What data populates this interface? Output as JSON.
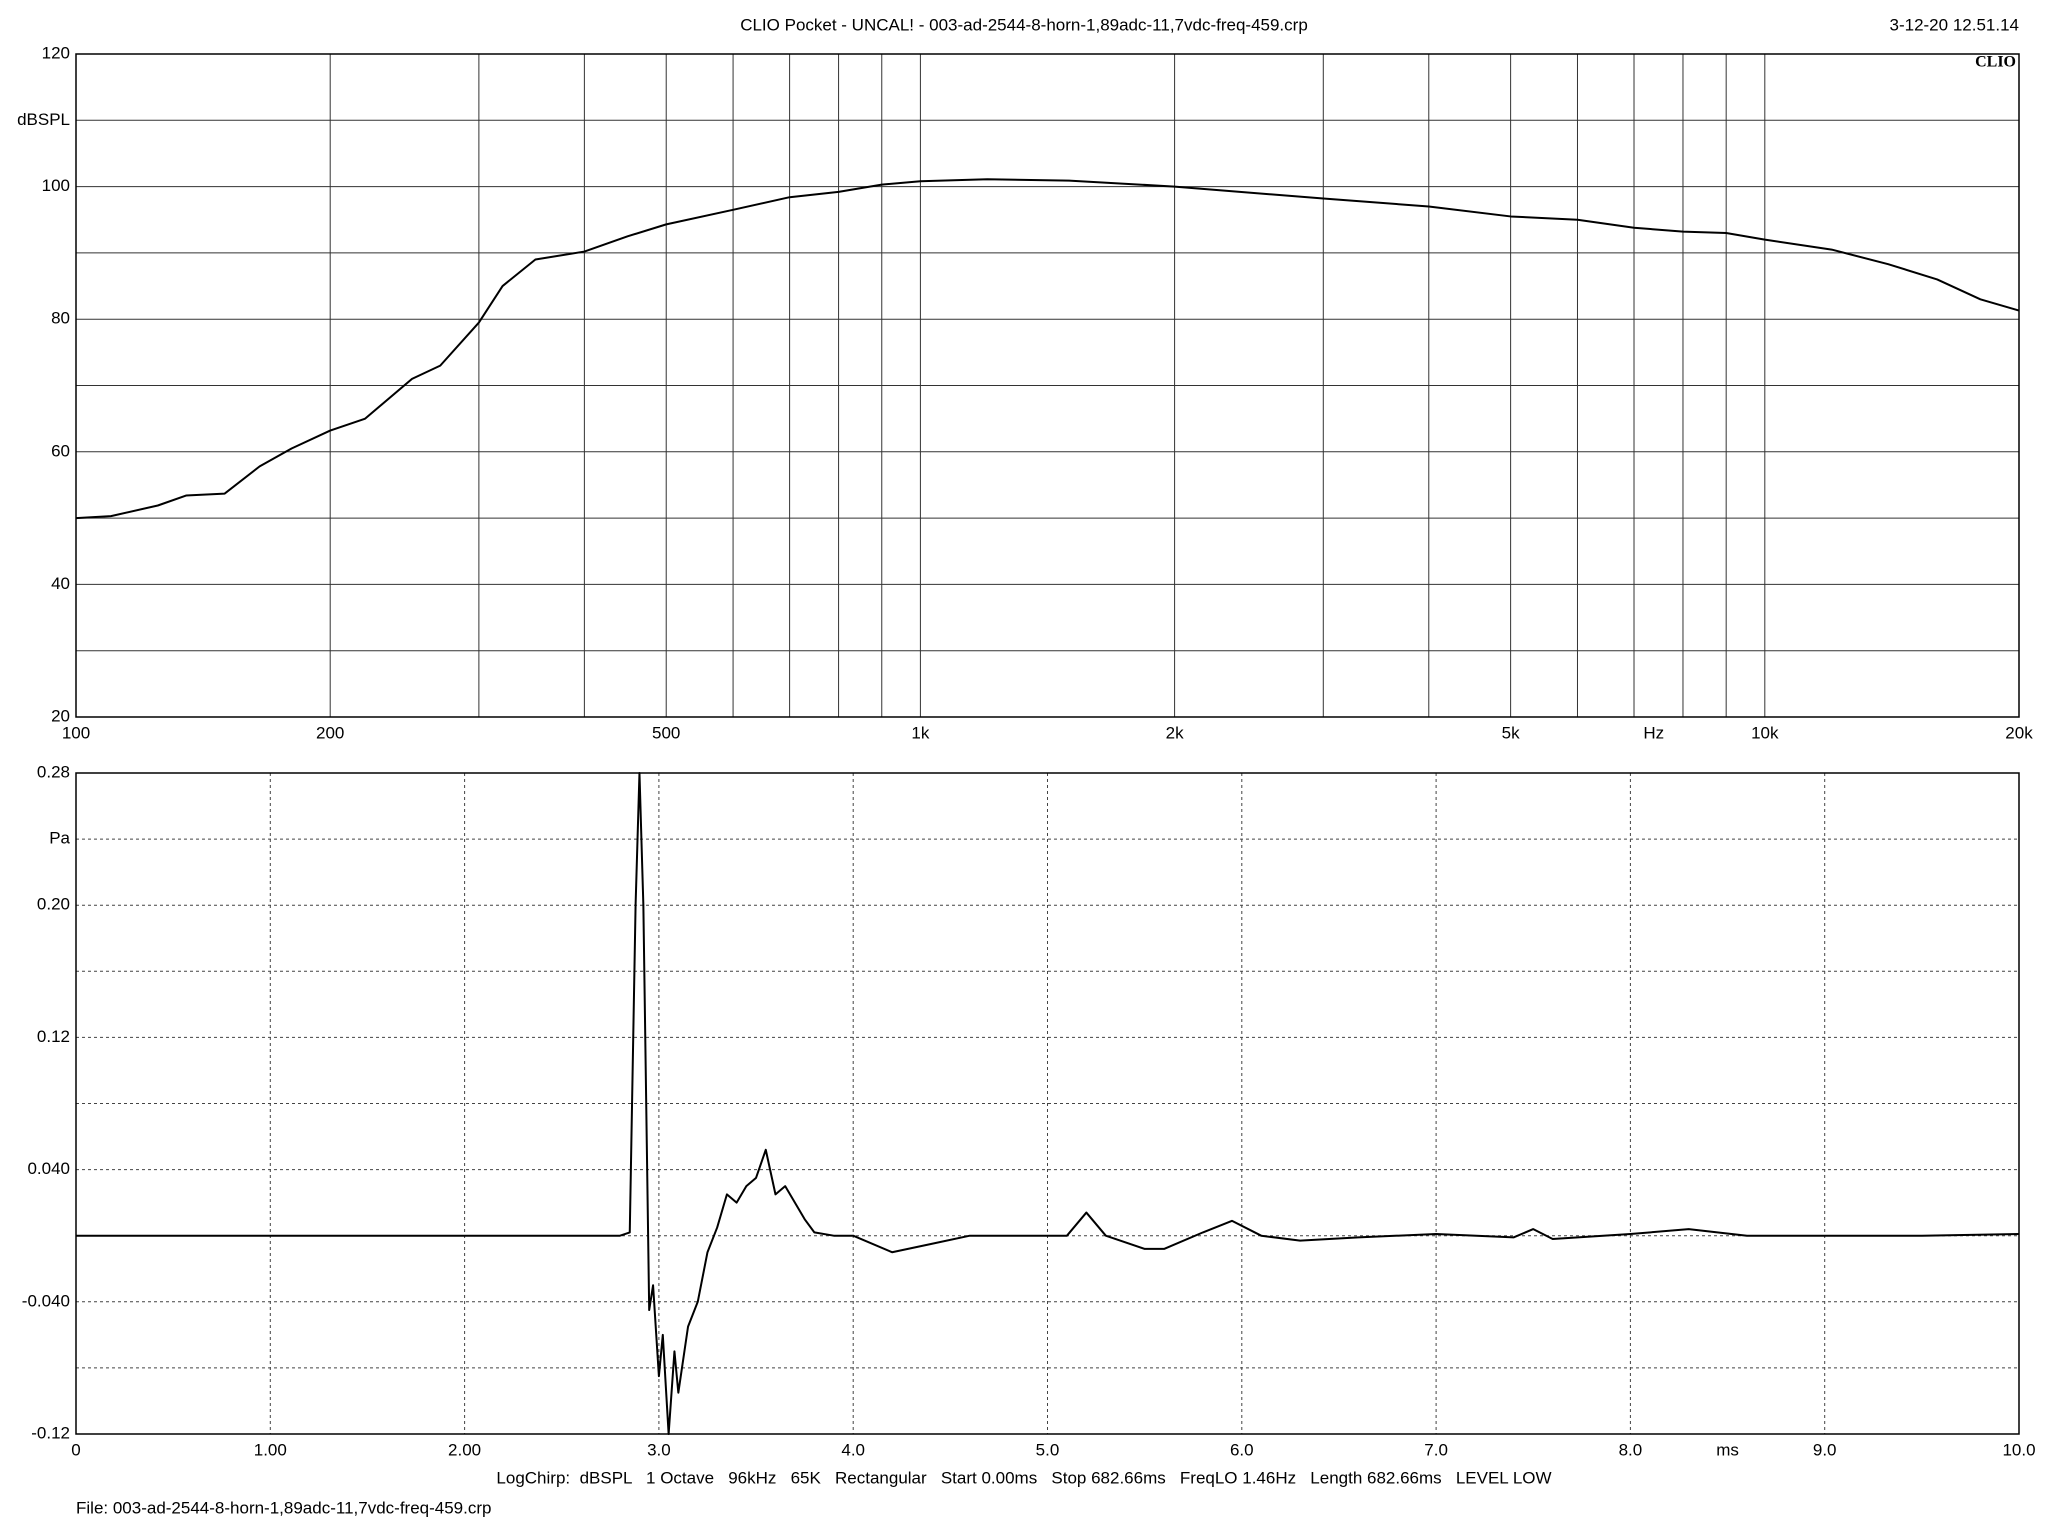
{
  "header": {
    "title": "CLIO Pocket - UNCAL! - 003-ad-2544-8-horn-1,89adc-11,7vdc-freq-459.crp",
    "timestamp": "3-12-20 12.51.14",
    "logo": "CLIO"
  },
  "footer": {
    "settings": "LogChirp:  dBSPL   1 Octave   96kHz   65K   Rectangular   Start 0.00ms   Stop 682.66ms   FreqLO 1.46Hz   Length 682.66ms   LEVEL LOW",
    "file": "File: 003-ad-2544-8-horn-1,89adc-11,7vdc-freq-459.crp"
  },
  "chart_data": [
    {
      "type": "line",
      "xscale": "log",
      "grid": "solid",
      "color": "#000000",
      "y_unit": "dBSPL",
      "x_unit": "Hz",
      "xlim": [
        100,
        20000
      ],
      "ylim": [
        20,
        120
      ],
      "xticks": [
        100,
        200,
        500,
        {
          "value": 1000,
          "label": "1k"
        },
        {
          "value": 2000,
          "label": "2k"
        },
        {
          "value": 5000,
          "label": "5k"
        },
        {
          "value": 10000,
          "label": "10k"
        },
        {
          "value": 20000,
          "label": "20k"
        }
      ],
      "xgrid": [
        300,
        400,
        600,
        700,
        800,
        900,
        3000,
        4000,
        6000,
        7000,
        8000,
        9000
      ],
      "yticks": [
        20,
        40,
        60,
        80,
        100,
        120
      ],
      "ygrid": [
        30,
        50,
        70,
        90,
        110
      ],
      "x": [
        100,
        110,
        125,
        135,
        150,
        165,
        180,
        200,
        220,
        250,
        270,
        300,
        320,
        350,
        400,
        450,
        500,
        600,
        700,
        800,
        900,
        1000,
        1200,
        1500,
        2000,
        3000,
        4000,
        5000,
        6000,
        7000,
        8000,
        9000,
        10000,
        12000,
        14000,
        16000,
        18000,
        20000
      ],
      "values": [
        50,
        50.3,
        51.9,
        53.4,
        53.7,
        57.8,
        60.5,
        63.2,
        65,
        71,
        73,
        79.5,
        85,
        89,
        90.2,
        92.5,
        94.3,
        96.5,
        98.4,
        99.2,
        100.3,
        100.8,
        101.1,
        100.9,
        100,
        98.2,
        97,
        95.5,
        95,
        93.8,
        93.2,
        93,
        92,
        90.5,
        88.3,
        86,
        83,
        81.3
      ]
    },
    {
      "type": "line",
      "xscale": "linear",
      "grid": "dashed",
      "color": "#000000",
      "y_unit": "Pa",
      "x_unit": "ms",
      "xlim": [
        0,
        10
      ],
      "ylim": [
        -0.12,
        0.28
      ],
      "xticks": [
        0,
        {
          "value": 1,
          "label": "1.00"
        },
        {
          "value": 2,
          "label": "2.00"
        },
        {
          "value": 3,
          "label": "3.0"
        },
        {
          "value": 4,
          "label": "4.0"
        },
        {
          "value": 5,
          "label": "5.0"
        },
        {
          "value": 6,
          "label": "6.0"
        },
        {
          "value": 7,
          "label": "7.0"
        },
        {
          "value": 8,
          "label": "8.0"
        },
        {
          "value": 9,
          "label": "9.0"
        },
        {
          "value": 10,
          "label": "10.0"
        }
      ],
      "xgrid": [],
      "yticks": [
        -0.12,
        {
          "value": -0.04,
          "label": "-0.040"
        },
        {
          "value": 0.04,
          "label": "0.040"
        },
        0.12,
        {
          "value": 0.2,
          "label": "0.20"
        },
        0.28
      ],
      "ygrid": [
        -0.08,
        0,
        0.08,
        0.16,
        0.24
      ],
      "x": [
        0,
        2.8,
        2.85,
        2.88,
        2.9,
        2.92,
        2.95,
        2.97,
        3.0,
        3.02,
        3.05,
        3.08,
        3.1,
        3.15,
        3.2,
        3.25,
        3.3,
        3.35,
        3.4,
        3.45,
        3.5,
        3.55,
        3.6,
        3.65,
        3.7,
        3.75,
        3.8,
        3.9,
        4.0,
        4.2,
        4.4,
        4.6,
        4.8,
        5.0,
        5.1,
        5.2,
        5.3,
        5.5,
        5.6,
        5.8,
        5.95,
        6.1,
        6.3,
        6.6,
        7.0,
        7.4,
        7.5,
        7.6,
        8.0,
        8.3,
        8.6,
        9.0,
        9.5,
        10.0
      ],
      "values": [
        0,
        0,
        0.002,
        0.2,
        0.28,
        0.2,
        -0.045,
        -0.03,
        -0.085,
        -0.06,
        -0.12,
        -0.07,
        -0.095,
        -0.055,
        -0.04,
        -0.01,
        0.005,
        0.025,
        0.02,
        0.03,
        0.035,
        0.052,
        0.025,
        0.03,
        0.02,
        0.01,
        0.002,
        0,
        0,
        -0.01,
        -0.005,
        0,
        0,
        0,
        0,
        0.014,
        0,
        -0.008,
        -0.008,
        0.002,
        0.009,
        0,
        -0.003,
        -0.001,
        0.001,
        -0.001,
        0.004,
        -0.002,
        0.001,
        0.004,
        0,
        0,
        0,
        0.001
      ]
    }
  ]
}
